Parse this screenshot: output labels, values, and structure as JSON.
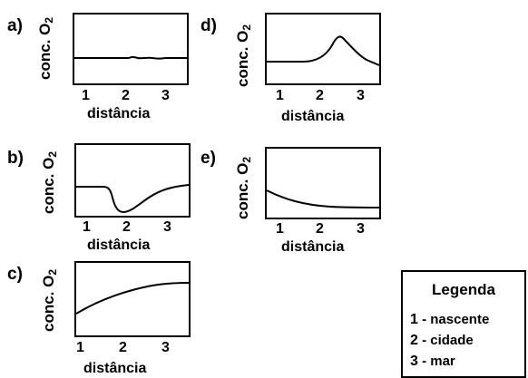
{
  "panels": [
    {
      "id": "a",
      "letter": "a)",
      "ylabel": "conc. O",
      "ysub": "2",
      "ticks": [
        "1",
        "2",
        "3"
      ],
      "xlabel": "distância",
      "curve_profile": "flat, slight ripple near 2-3"
    },
    {
      "id": "d",
      "letter": "d)",
      "ylabel": "conc. O",
      "ysub": "2",
      "ticks": [
        "1",
        "2",
        "3"
      ],
      "xlabel": "distância",
      "curve_profile": "flat then peak near 2.5 then decline"
    },
    {
      "id": "b",
      "letter": "b)",
      "ylabel": "conc. O",
      "ysub": "2",
      "ticks": [
        "1",
        "2",
        "3"
      ],
      "xlabel": "distância",
      "curve_profile": "flat then sharp dip near 2 then recovery"
    },
    {
      "id": "e",
      "letter": "e)",
      "ylabel": "conc. O",
      "ysub": "2",
      "ticks": [
        "1",
        "2",
        "3"
      ],
      "xlabel": "distância",
      "curve_profile": "decaying from high to low"
    },
    {
      "id": "c",
      "letter": "c)",
      "ylabel": "conc. O",
      "ysub": "2",
      "ticks": [
        "1",
        "2",
        "3"
      ],
      "xlabel": "distância",
      "curve_profile": "rising saturating curve"
    }
  ],
  "legend": {
    "title": "Legenda",
    "items": [
      {
        "num": "1",
        "sep": " - ",
        "label": "nascente"
      },
      {
        "num": "2",
        "sep": " - ",
        "label": "cidade"
      },
      {
        "num": "3",
        "sep": " - ",
        "label": "mar"
      }
    ]
  }
}
